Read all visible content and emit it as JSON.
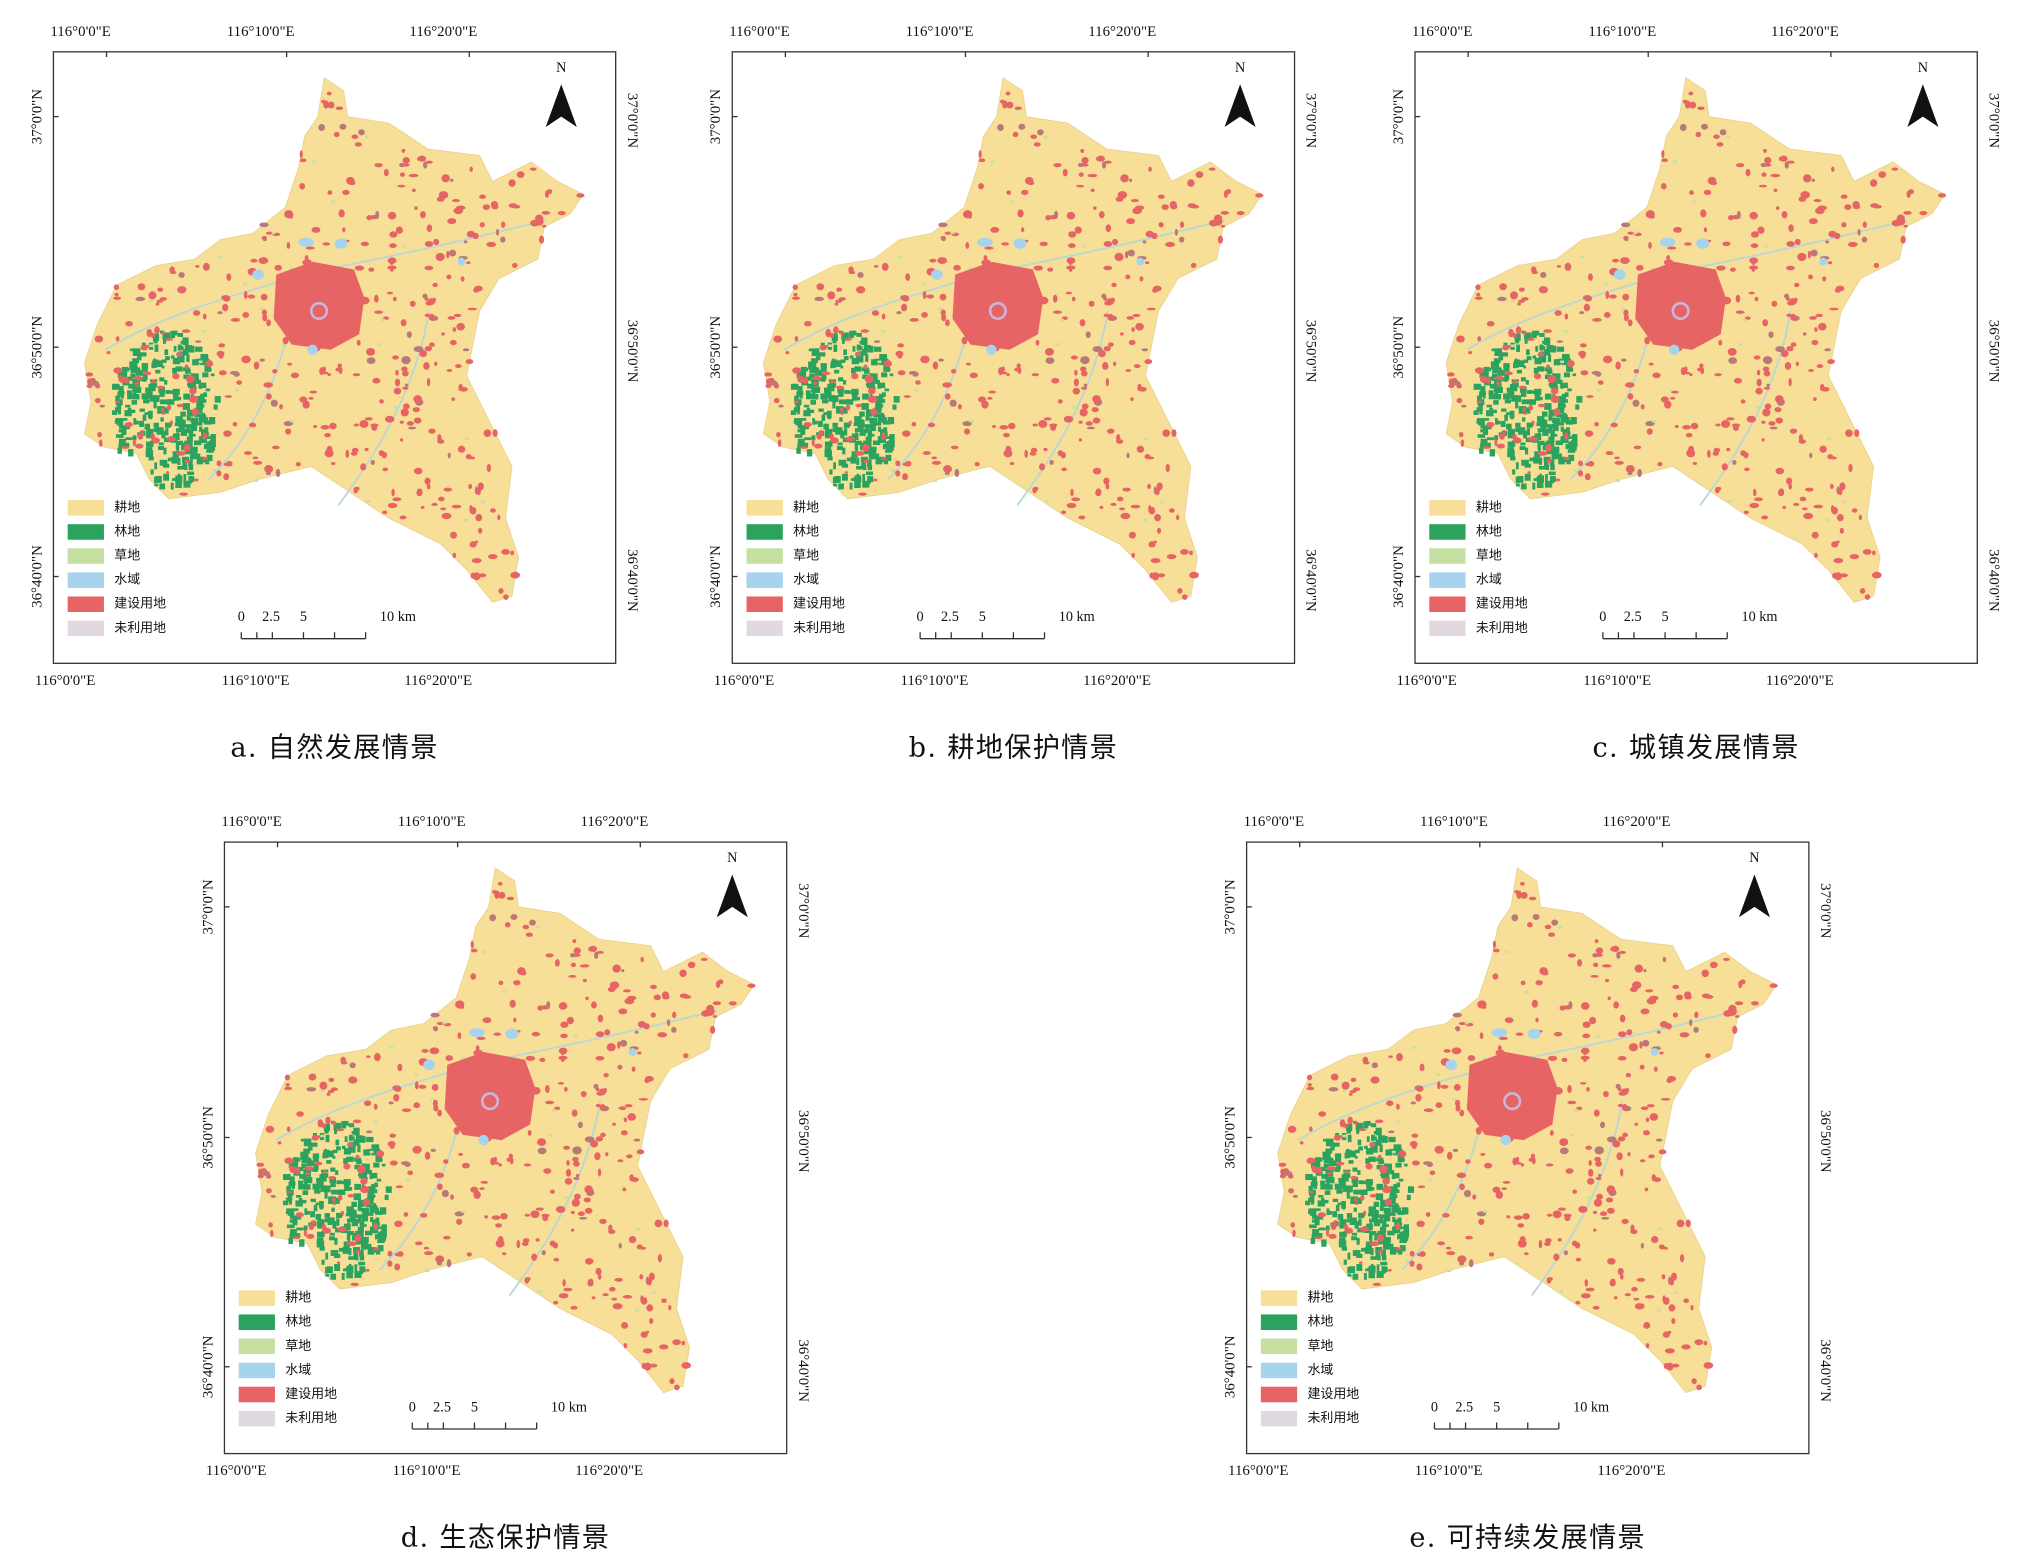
{
  "lon_labels": [
    "116°0'0\"E",
    "116°10'0\"E",
    "116°20'0\"E"
  ],
  "lat_labels": [
    "37°0'0\"N",
    "36°50'0\"N",
    "36°40'0\"N"
  ],
  "north": "N",
  "legend": [
    {
      "label": "耕地",
      "color": "#f7df98"
    },
    {
      "label": "林地",
      "color": "#2ca25f"
    },
    {
      "label": "草地",
      "color": "#c5e0a0"
    },
    {
      "label": "水域",
      "color": "#a7d3ec"
    },
    {
      "label": "建设用地",
      "color": "#e66464"
    },
    {
      "label": "未利用地",
      "color": "#e2d9e0"
    }
  ],
  "scale_labels": [
    "0",
    "2.5",
    "5",
    "10 km"
  ],
  "panels": [
    {
      "caption": "a. 自然发展情景"
    },
    {
      "caption": "b. 耕地保护情景"
    },
    {
      "caption": "c. 城镇发展情景"
    },
    {
      "caption": "d. 生态保护情景"
    },
    {
      "caption": "e. 可持续发展情景"
    }
  ]
}
